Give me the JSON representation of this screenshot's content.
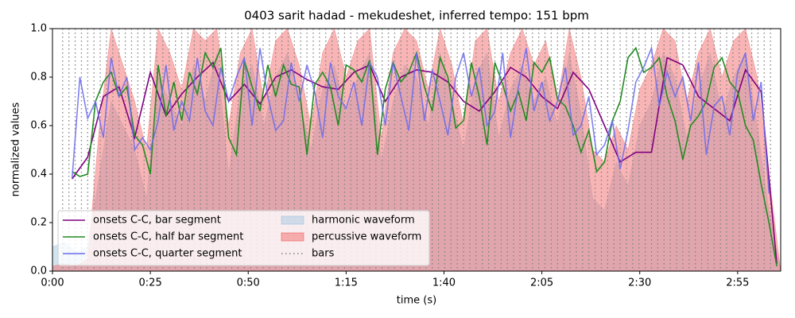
{
  "chart_data": {
    "type": "line",
    "title": "0403 sarit hadad - mekudeshet, inferred tempo: 151 bpm",
    "xlabel": "time (s)",
    "ylabel": "normalized values",
    "xlim": [
      0,
      186
    ],
    "ylim": [
      0,
      1
    ],
    "xticks": [
      {
        "value": 0,
        "label": "0:00"
      },
      {
        "value": 25,
        "label": "0:25"
      },
      {
        "value": 50,
        "label": "0:50"
      },
      {
        "value": 75,
        "label": "1:15"
      },
      {
        "value": 100,
        "label": "1:40"
      },
      {
        "value": 125,
        "label": "2:05"
      },
      {
        "value": 150,
        "label": "2:30"
      },
      {
        "value": 175,
        "label": "2:55"
      }
    ],
    "yticks": [
      {
        "value": 0,
        "label": "0.0"
      },
      {
        "value": 0.2,
        "label": "0.2"
      },
      {
        "value": 0.4,
        "label": "0.4"
      },
      {
        "value": 0.6,
        "label": "0.6"
      },
      {
        "value": 0.8,
        "label": "0.8"
      },
      {
        "value": 1,
        "label": "1.0"
      }
    ],
    "legend": "lower left",
    "series": [
      {
        "name": "onsets C-C, bar segment",
        "style": "line",
        "color": "#800080",
        "x": [
          5,
          9,
          13,
          17,
          21,
          25,
          29,
          33,
          37,
          41,
          45,
          49,
          53,
          57,
          61,
          65,
          69,
          73,
          77,
          81,
          85,
          89,
          93,
          97,
          101,
          105,
          109,
          113,
          117,
          121,
          125,
          129,
          133,
          137,
          141,
          145,
          149,
          153,
          157,
          161,
          165,
          169,
          173,
          177,
          181,
          185
        ],
        "values": [
          0.38,
          0.47,
          0.72,
          0.76,
          0.55,
          0.82,
          0.64,
          0.73,
          0.8,
          0.86,
          0.7,
          0.77,
          0.69,
          0.8,
          0.83,
          0.79,
          0.76,
          0.75,
          0.82,
          0.85,
          0.7,
          0.8,
          0.83,
          0.82,
          0.78,
          0.7,
          0.66,
          0.74,
          0.84,
          0.8,
          0.72,
          0.67,
          0.82,
          0.75,
          0.6,
          0.45,
          0.49,
          0.49,
          0.88,
          0.85,
          0.72,
          0.67,
          0.62,
          0.83,
          0.74,
          0.03
        ]
      },
      {
        "name": "onsets C-C, half bar segment",
        "style": "line",
        "color": "#228b22",
        "x": [
          5,
          7,
          9,
          11,
          13,
          15,
          17,
          19,
          21,
          23,
          25,
          27,
          29,
          31,
          33,
          35,
          37,
          39,
          41,
          43,
          45,
          47,
          49,
          51,
          53,
          55,
          57,
          59,
          61,
          63,
          65,
          67,
          69,
          71,
          73,
          75,
          77,
          79,
          81,
          83,
          85,
          87,
          89,
          91,
          93,
          95,
          97,
          99,
          101,
          103,
          105,
          107,
          109,
          111,
          113,
          115,
          117,
          119,
          121,
          123,
          125,
          127,
          129,
          131,
          133,
          135,
          137,
          139,
          141,
          143,
          145,
          147,
          149,
          151,
          153,
          155,
          157,
          159,
          161,
          163,
          165,
          167,
          169,
          171,
          173,
          175,
          177,
          179,
          181,
          183,
          185
        ],
        "values": [
          0.41,
          0.39,
          0.4,
          0.7,
          0.78,
          0.82,
          0.72,
          0.76,
          0.56,
          0.52,
          0.4,
          0.85,
          0.64,
          0.78,
          0.62,
          0.82,
          0.73,
          0.9,
          0.84,
          0.92,
          0.55,
          0.48,
          0.87,
          0.76,
          0.66,
          0.85,
          0.72,
          0.85,
          0.77,
          0.76,
          0.48,
          0.77,
          0.82,
          0.76,
          0.6,
          0.85,
          0.83,
          0.78,
          0.87,
          0.48,
          0.75,
          0.86,
          0.78,
          0.82,
          0.9,
          0.76,
          0.66,
          0.88,
          0.8,
          0.59,
          0.62,
          0.86,
          0.72,
          0.52,
          0.86,
          0.77,
          0.66,
          0.74,
          0.62,
          0.86,
          0.82,
          0.88,
          0.71,
          0.68,
          0.6,
          0.49,
          0.58,
          0.41,
          0.45,
          0.62,
          0.7,
          0.88,
          0.92,
          0.82,
          0.84,
          0.88,
          0.72,
          0.62,
          0.46,
          0.6,
          0.64,
          0.7,
          0.84,
          0.88,
          0.78,
          0.74,
          0.6,
          0.54,
          0.36,
          0.2,
          0.02
        ]
      },
      {
        "name": "onsets C-C, quarter segment",
        "style": "line",
        "color": "#6a6aee",
        "x": [
          5,
          7,
          9,
          11,
          13,
          15,
          17,
          19,
          21,
          23,
          25,
          27,
          29,
          31,
          33,
          35,
          37,
          39,
          41,
          43,
          45,
          47,
          49,
          51,
          53,
          55,
          57,
          59,
          61,
          63,
          65,
          67,
          69,
          71,
          73,
          75,
          77,
          79,
          81,
          83,
          85,
          87,
          89,
          91,
          93,
          95,
          97,
          99,
          101,
          103,
          105,
          107,
          109,
          111,
          113,
          115,
          117,
          119,
          121,
          123,
          125,
          127,
          129,
          131,
          133,
          135,
          137,
          139,
          141,
          143,
          145,
          147,
          149,
          151,
          153,
          155,
          157,
          159,
          161,
          163,
          165,
          167,
          169,
          171,
          173,
          175,
          177,
          179,
          181,
          183
        ],
        "values": [
          0.38,
          0.8,
          0.63,
          0.7,
          0.55,
          0.88,
          0.72,
          0.8,
          0.5,
          0.55,
          0.5,
          0.62,
          0.85,
          0.58,
          0.7,
          0.62,
          0.88,
          0.66,
          0.6,
          0.84,
          0.7,
          0.8,
          0.88,
          0.6,
          0.92,
          0.72,
          0.58,
          0.62,
          0.86,
          0.7,
          0.85,
          0.74,
          0.55,
          0.86,
          0.72,
          0.67,
          0.78,
          0.6,
          0.86,
          0.8,
          0.6,
          0.86,
          0.72,
          0.58,
          0.9,
          0.62,
          0.83,
          0.7,
          0.56,
          0.8,
          0.9,
          0.72,
          0.84,
          0.6,
          0.66,
          0.9,
          0.55,
          0.76,
          0.92,
          0.66,
          0.78,
          0.62,
          0.7,
          0.84,
          0.56,
          0.6,
          0.72,
          0.48,
          0.52,
          0.62,
          0.42,
          0.58,
          0.78,
          0.84,
          0.92,
          0.68,
          0.82,
          0.72,
          0.8,
          0.62,
          0.86,
          0.48,
          0.68,
          0.72,
          0.56,
          0.82,
          0.9,
          0.62,
          0.78,
          0.32
        ]
      },
      {
        "name": "harmonic waveform",
        "style": "area",
        "color": "#9dc3df",
        "x": [
          0,
          3,
          6,
          9,
          12,
          15,
          18,
          21,
          24,
          27,
          30,
          33,
          36,
          39,
          42,
          45,
          48,
          51,
          54,
          57,
          60,
          63,
          66,
          69,
          72,
          75,
          78,
          81,
          84,
          87,
          90,
          93,
          96,
          99,
          102,
          105,
          108,
          111,
          114,
          117,
          120,
          123,
          126,
          129,
          132,
          135,
          138,
          141,
          144,
          147,
          150,
          153,
          156,
          159,
          162,
          165,
          168,
          171,
          174,
          177,
          180,
          183,
          186
        ],
        "values": [
          0.1,
          0.12,
          0.08,
          0.1,
          0.4,
          0.7,
          0.6,
          0.5,
          0.3,
          0.8,
          0.7,
          0.6,
          0.85,
          0.7,
          0.9,
          0.4,
          0.75,
          0.85,
          0.6,
          0.8,
          0.9,
          0.7,
          0.5,
          0.75,
          0.85,
          0.65,
          0.8,
          0.9,
          0.45,
          0.7,
          0.85,
          0.8,
          0.6,
          0.9,
          0.7,
          0.5,
          0.8,
          0.9,
          0.55,
          0.75,
          0.85,
          0.7,
          0.8,
          0.6,
          0.9,
          0.65,
          0.3,
          0.25,
          0.45,
          0.35,
          0.6,
          0.7,
          0.9,
          0.8,
          0.55,
          0.75,
          0.9,
          0.65,
          0.8,
          0.9,
          0.6,
          0.25,
          0
        ]
      },
      {
        "name": "percussive waveform",
        "style": "area",
        "color": "#f25a5a",
        "x": [
          0,
          3,
          6,
          9,
          12,
          15,
          18,
          21,
          24,
          27,
          30,
          33,
          36,
          39,
          42,
          45,
          48,
          51,
          54,
          57,
          60,
          63,
          66,
          69,
          72,
          75,
          78,
          81,
          84,
          87,
          90,
          93,
          96,
          99,
          102,
          105,
          108,
          111,
          114,
          117,
          120,
          123,
          126,
          129,
          132,
          135,
          138,
          141,
          144,
          147,
          150,
          153,
          156,
          159,
          162,
          165,
          168,
          171,
          174,
          177,
          180,
          183,
          186
        ],
        "values": [
          0.02,
          0.03,
          0.02,
          0.05,
          0.6,
          1,
          0.85,
          0.7,
          0.5,
          1,
          0.9,
          0.75,
          1,
          0.95,
          1,
          0.6,
          0.9,
          1,
          0.7,
          0.95,
          1,
          0.85,
          0.6,
          0.9,
          1,
          0.8,
          0.95,
          1,
          0.55,
          0.9,
          1,
          0.95,
          0.75,
          1,
          0.85,
          0.6,
          0.95,
          1,
          0.7,
          0.9,
          1,
          0.85,
          0.95,
          0.7,
          1,
          0.8,
          0.5,
          0.45,
          0.6,
          0.5,
          0.75,
          0.85,
          1,
          0.95,
          0.7,
          0.9,
          1,
          0.8,
          0.95,
          1,
          0.8,
          0.4,
          0
        ]
      },
      {
        "name": "bars",
        "style": "vlines",
        "color": "#808080",
        "x": [
          2.6,
          4.2,
          5.8,
          7.4,
          9,
          10.6,
          12.2,
          13.8,
          15.4,
          17,
          18.6,
          20.2,
          21.8,
          23.4,
          25,
          26.6,
          28.2,
          29.8,
          31.4,
          33,
          34.6,
          36.2,
          37.8,
          39.4,
          41,
          42.6,
          44.2,
          45.8,
          47.4,
          49,
          50.6,
          52.2,
          53.8,
          55.4,
          57,
          58.6,
          60.2,
          61.8,
          63.4,
          65,
          66.6,
          68.2,
          69.8,
          71.4,
          73,
          74.6,
          76.2,
          77.8,
          79.4,
          81,
          82.6,
          84.2,
          85.8,
          87.4,
          89,
          90.6,
          92.2,
          93.8,
          95.4,
          97,
          98.6,
          100.2,
          101.8,
          103.4,
          105,
          106.6,
          108.2,
          109.8,
          111.4,
          113,
          114.6,
          116.2,
          117.8,
          119.4,
          121,
          122.6,
          124.2,
          125.8,
          127.4,
          129,
          130.6,
          132.2,
          133.8,
          135.4,
          137,
          138.6,
          140.2,
          141.8,
          143.4,
          145,
          146.6,
          148.2,
          149.8,
          151.4,
          153,
          154.6,
          156.2,
          157.8,
          159.4,
          161,
          162.6,
          164.2,
          165.8,
          167.4,
          169,
          170.6,
          172.2,
          173.8,
          175.4,
          177,
          178.6,
          180.2,
          181.8,
          183.4
        ]
      }
    ]
  }
}
